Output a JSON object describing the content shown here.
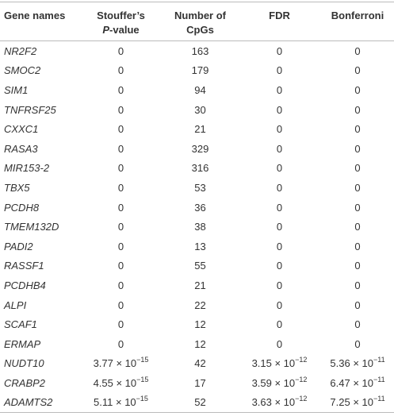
{
  "table": {
    "header": {
      "gene": "Gene names",
      "stouffer": {
        "line1": "Stouffer’s",
        "italic": "P",
        "rest": "-value"
      },
      "cpgs": {
        "line1": "Number of",
        "line2": "CpGs"
      },
      "fdr": "FDR",
      "bonferroni": "Bonferroni"
    },
    "rows": [
      [
        "NR2F2",
        "0",
        "163",
        "0",
        "0"
      ],
      [
        "SMOC2",
        "0",
        "179",
        "0",
        "0"
      ],
      [
        "SIM1",
        "0",
        "94",
        "0",
        "0"
      ],
      [
        "TNFRSF25",
        "0",
        "30",
        "0",
        "0"
      ],
      [
        "CXXC1",
        "0",
        "21",
        "0",
        "0"
      ],
      [
        "RASA3",
        "0",
        "329",
        "0",
        "0"
      ],
      [
        "MIR153-2",
        "0",
        "316",
        "0",
        "0"
      ],
      [
        "TBX5",
        "0",
        "53",
        "0",
        "0"
      ],
      [
        "PCDH8",
        "0",
        "36",
        "0",
        "0"
      ],
      [
        "TMEM132D",
        "0",
        "38",
        "0",
        "0"
      ],
      [
        "PADI2",
        "0",
        "13",
        "0",
        "0"
      ],
      [
        "RASSF1",
        "0",
        "55",
        "0",
        "0"
      ],
      [
        "PCDHB4",
        "0",
        "21",
        "0",
        "0"
      ],
      [
        "ALPI",
        "0",
        "22",
        "0",
        "0"
      ],
      [
        "SCAF1",
        "0",
        "12",
        "0",
        "0"
      ],
      [
        "ERMAP",
        "0",
        "12",
        "0",
        "0"
      ],
      [
        "NUDT10",
        {
          "base": "3.77 × 10",
          "exp": "−15"
        },
        "42",
        {
          "base": "3.15 × 10",
          "exp": "−12"
        },
        {
          "base": "5.36 × 10",
          "exp": "−11"
        }
      ],
      [
        "CRABP2",
        {
          "base": "4.55 × 10",
          "exp": "−15"
        },
        "17",
        {
          "base": "3.59 × 10",
          "exp": "−12"
        },
        {
          "base": "6.47 × 10",
          "exp": "−11"
        }
      ],
      [
        "ADAMTS2",
        {
          "base": "5.11 × 10",
          "exp": "−15"
        },
        "52",
        {
          "base": "3.63 × 10",
          "exp": "−12"
        },
        {
          "base": "7.25 × 10",
          "exp": "−11"
        }
      ]
    ]
  }
}
